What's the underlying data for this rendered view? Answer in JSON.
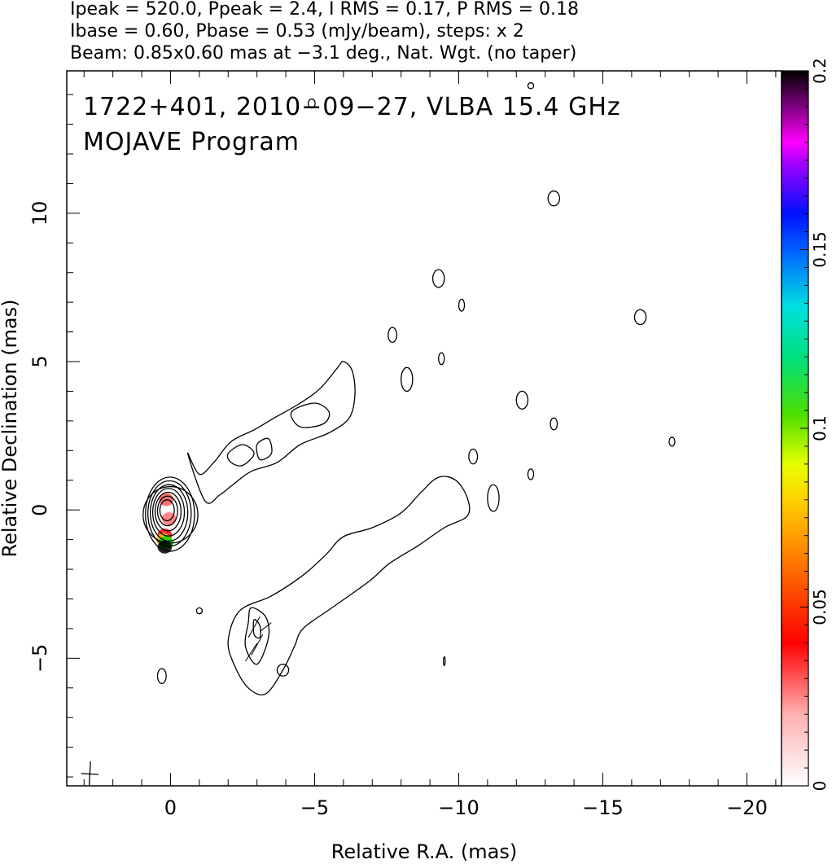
{
  "header": {
    "line1": "Ipeak = 520.0, Ppeak = 2.4, I RMS = 0.17, P RMS = 0.18",
    "line2": "Ibase = 0.60, Pbase = 0.53 (mJy/beam), steps: x 2",
    "line3": "Beam: 0.85x0.60 mas at −3.1 deg., Nat. Wgt. (no taper)"
  },
  "plot": {
    "title_line1": "1722+401, 2010−09−27, VLBA 15.4 GHz",
    "title_line2": "MOJAVE Program"
  },
  "chart_data": {
    "type": "contour",
    "xlabel": "Relative R.A. (mas)",
    "ylabel": "Relative Declination (mas)",
    "xlim": [
      3.6,
      -21.2
    ],
    "ylim": [
      -9.3,
      14.8
    ],
    "x_ticks": [
      0,
      -5,
      -10,
      -15,
      -20
    ],
    "x_tick_labels": [
      "0",
      "−5",
      "−10",
      "−15",
      "−20"
    ],
    "y_ticks": [
      -5,
      0,
      5,
      10
    ],
    "y_tick_labels": [
      "−5",
      "0",
      "5",
      "10"
    ],
    "colorbar": {
      "min": 0,
      "max": 0.2,
      "ticks": [
        0,
        0.05,
        0.1,
        0.15,
        0.2
      ],
      "tick_labels": [
        "0",
        "0.05",
        "0.1",
        "0.15",
        "0.2"
      ]
    },
    "core_contours_mas": [
      {
        "rx": 0.95,
        "ry": 0.95
      },
      {
        "rx": 0.85,
        "ry": 1.25
      },
      {
        "rx": 0.75,
        "ry": 1.1
      },
      {
        "rx": 0.65,
        "ry": 0.95
      },
      {
        "rx": 0.55,
        "ry": 0.8
      },
      {
        "rx": 0.45,
        "ry": 0.65
      },
      {
        "rx": 0.35,
        "ry": 0.5
      },
      {
        "rx": 0.25,
        "ry": 0.35
      }
    ],
    "jet_contours": [
      {
        "name": "jet-outer",
        "points": [
          [
            -0.6,
            1.9
          ],
          [
            -1.0,
            1.2
          ],
          [
            -1.5,
            1.6
          ],
          [
            -2.1,
            2.3
          ],
          [
            -2.9,
            2.7
          ],
          [
            -3.6,
            3.1
          ],
          [
            -4.5,
            3.6
          ],
          [
            -5.2,
            4.1
          ],
          [
            -5.8,
            4.8
          ],
          [
            -6.0,
            5.0
          ],
          [
            -6.3,
            4.7
          ],
          [
            -6.4,
            3.9
          ],
          [
            -6.2,
            3.1
          ],
          [
            -5.5,
            2.6
          ],
          [
            -4.5,
            2.2
          ],
          [
            -3.7,
            1.6
          ],
          [
            -2.8,
            1.3
          ],
          [
            -2.1,
            0.8
          ],
          [
            -1.7,
            0.5
          ],
          [
            -1.2,
            0.3
          ]
        ]
      },
      {
        "name": "jet-inner-1",
        "points": [
          [
            -2.0,
            1.9
          ],
          [
            -2.5,
            2.2
          ],
          [
            -2.9,
            1.9
          ],
          [
            -2.5,
            1.5
          ],
          [
            -2.1,
            1.6
          ]
        ]
      },
      {
        "name": "jet-inner-2",
        "points": [
          [
            -3.0,
            2.2
          ],
          [
            -3.4,
            2.4
          ],
          [
            -3.5,
            1.9
          ],
          [
            -3.1,
            1.7
          ]
        ]
      },
      {
        "name": "jet-inner-3",
        "points": [
          [
            -4.2,
            3.3
          ],
          [
            -5.0,
            3.6
          ],
          [
            -5.5,
            3.3
          ],
          [
            -5.3,
            2.9
          ],
          [
            -4.5,
            2.8
          ]
        ]
      },
      {
        "name": "counter-outer",
        "points": [
          [
            -2.4,
            -3.4
          ],
          [
            -3.5,
            -2.9
          ],
          [
            -4.6,
            -2.2
          ],
          [
            -5.4,
            -1.5
          ],
          [
            -6.0,
            -0.9
          ],
          [
            -7.0,
            -0.6
          ],
          [
            -8.0,
            -0.1
          ],
          [
            -8.7,
            0.6
          ],
          [
            -9.3,
            1.1
          ],
          [
            -9.9,
            1.0
          ],
          [
            -10.3,
            0.4
          ],
          [
            -10.3,
            -0.2
          ],
          [
            -9.5,
            -0.6
          ],
          [
            -8.6,
            -1.2
          ],
          [
            -7.6,
            -1.8
          ],
          [
            -6.9,
            -2.4
          ],
          [
            -5.6,
            -3.3
          ],
          [
            -4.6,
            -4.0
          ],
          [
            -4.3,
            -4.6
          ],
          [
            -3.9,
            -5.4
          ],
          [
            -3.3,
            -6.2
          ],
          [
            -2.7,
            -6.0
          ],
          [
            -2.2,
            -5.2
          ],
          [
            -2.0,
            -4.4
          ]
        ]
      },
      {
        "name": "counter-knot-1",
        "points": [
          [
            -2.8,
            -3.3
          ],
          [
            -3.3,
            -3.6
          ],
          [
            -3.4,
            -4.3
          ],
          [
            -3.0,
            -5.2
          ],
          [
            -2.6,
            -4.6
          ],
          [
            -2.7,
            -3.8
          ]
        ]
      },
      {
        "name": "counter-knot-2",
        "points": [
          [
            -2.9,
            -3.7
          ],
          [
            -3.1,
            -3.9
          ],
          [
            -3.1,
            -4.3
          ],
          [
            -2.9,
            -4.2
          ]
        ]
      }
    ],
    "blobs": [
      [
        -12.5,
        14.3,
        0.1,
        0.1
      ],
      [
        -4.9,
        13.7,
        0.12,
        0.15
      ],
      [
        -13.3,
        10.5,
        0.2,
        0.25
      ],
      [
        -9.3,
        7.8,
        0.2,
        0.3
      ],
      [
        -10.1,
        6.9,
        0.1,
        0.2
      ],
      [
        -16.3,
        6.5,
        0.2,
        0.25
      ],
      [
        -7.7,
        5.9,
        0.15,
        0.25
      ],
      [
        -9.4,
        5.1,
        0.1,
        0.2
      ],
      [
        -8.2,
        4.4,
        0.2,
        0.4
      ],
      [
        -12.2,
        3.7,
        0.2,
        0.3
      ],
      [
        -13.3,
        2.9,
        0.12,
        0.2
      ],
      [
        -17.4,
        2.3,
        0.1,
        0.15
      ],
      [
        -10.5,
        1.8,
        0.15,
        0.25
      ],
      [
        -12.5,
        1.2,
        0.1,
        0.18
      ],
      [
        -11.2,
        0.4,
        0.2,
        0.45
      ],
      [
        -1.0,
        -3.4,
        0.1,
        0.1
      ],
      [
        -3.9,
        -5.4,
        0.2,
        0.2
      ],
      [
        0.3,
        -5.6,
        0.15,
        0.25
      ],
      [
        -9.5,
        -5.1,
        0.03,
        0.15
      ]
    ],
    "polarization_ticks": [
      [
        -2.7,
        -4.3,
        -3.1,
        -3.6
      ],
      [
        -2.8,
        -4.9,
        -3.2,
        -4.2
      ],
      [
        -2.6,
        -5.1,
        -3.0,
        -4.5
      ],
      [
        -3.1,
        -4.1,
        -3.5,
        -3.8
      ]
    ],
    "core_color_patches": [
      {
        "x": 0.15,
        "y": 0.35,
        "color": "#ff5a5a"
      },
      {
        "x": 0.05,
        "y": -0.3,
        "color": "#ff7070"
      },
      {
        "x": 0.2,
        "y": -0.85,
        "color": "#ff0000"
      },
      {
        "x": 0.25,
        "y": -1.0,
        "color": "#ffcc00"
      },
      {
        "x": 0.15,
        "y": -1.1,
        "color": "#00dd00"
      },
      {
        "x": 0.2,
        "y": -1.25,
        "color": "#000000"
      }
    ],
    "beam": {
      "x": 2.8,
      "y": -8.9,
      "major_mas": 0.85,
      "minor_mas": 0.6,
      "pa_deg": -3.1
    }
  }
}
